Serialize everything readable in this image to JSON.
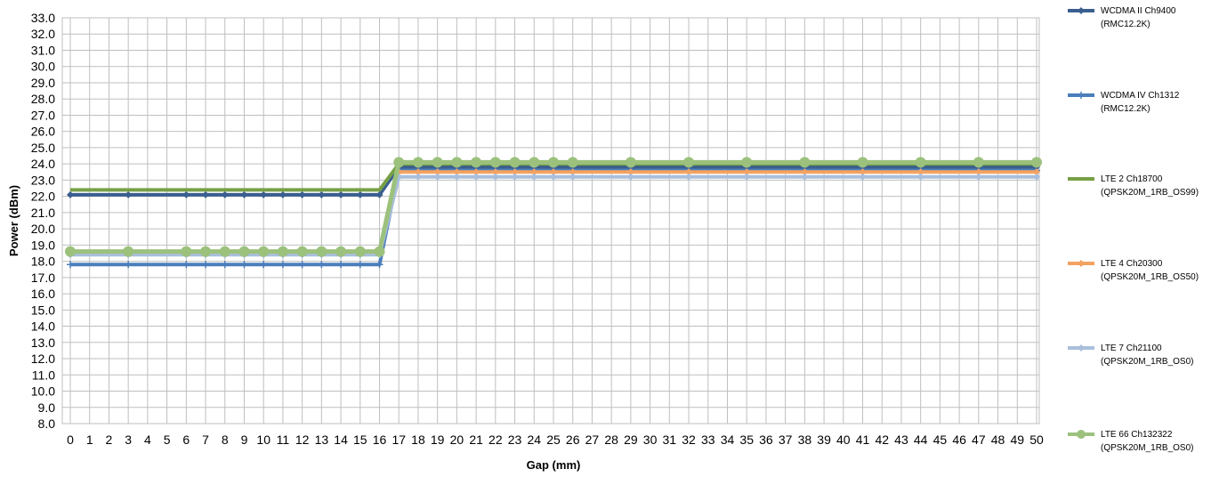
{
  "chart_data": {
    "type": "line",
    "title": "",
    "xlabel": "Gap (mm)",
    "ylabel": "Power (dBm)",
    "xlim": [
      0,
      50
    ],
    "ylim": [
      8.0,
      33.0
    ],
    "ytick_step": 1.0,
    "grid": true,
    "legend_position": "right",
    "series": [
      {
        "name": "WCDMA II Ch9400",
        "name_line2": "(RMC12.2K)",
        "color": "#3A5F8F",
        "marker": "diamond",
        "points": [
          [
            0,
            22.1
          ],
          [
            3,
            22.1
          ],
          [
            6,
            22.1
          ],
          [
            7,
            22.1
          ],
          [
            8,
            22.1
          ],
          [
            9,
            22.1
          ],
          [
            10,
            22.1
          ],
          [
            11,
            22.1
          ],
          [
            12,
            22.1
          ],
          [
            13,
            22.1
          ],
          [
            14,
            22.1
          ],
          [
            15,
            22.1
          ],
          [
            16,
            22.1
          ],
          [
            17,
            23.8
          ],
          [
            18,
            23.8
          ],
          [
            19,
            23.8
          ],
          [
            20,
            23.8
          ],
          [
            21,
            23.8
          ],
          [
            22,
            23.8
          ],
          [
            23,
            23.8
          ],
          [
            24,
            23.8
          ],
          [
            25,
            23.8
          ],
          [
            26,
            23.8
          ],
          [
            29,
            23.8
          ],
          [
            32,
            23.8
          ],
          [
            35,
            23.8
          ],
          [
            38,
            23.8
          ],
          [
            41,
            23.8
          ],
          [
            44,
            23.8
          ],
          [
            47,
            23.8
          ],
          [
            50,
            23.8
          ]
        ]
      },
      {
        "name": "WCDMA IV Ch1312",
        "name_line2": "(RMC12.2K)",
        "color": "#4A7EBB",
        "marker": "plus",
        "points": [
          [
            0,
            17.8
          ],
          [
            3,
            17.8
          ],
          [
            6,
            17.8
          ],
          [
            7,
            17.8
          ],
          [
            8,
            17.8
          ],
          [
            9,
            17.8
          ],
          [
            10,
            17.8
          ],
          [
            11,
            17.8
          ],
          [
            12,
            17.8
          ],
          [
            13,
            17.8
          ],
          [
            14,
            17.8
          ],
          [
            15,
            17.8
          ],
          [
            16,
            17.8
          ],
          [
            17,
            23.6
          ],
          [
            18,
            23.6
          ],
          [
            19,
            23.6
          ],
          [
            20,
            23.6
          ],
          [
            21,
            23.6
          ],
          [
            22,
            23.6
          ],
          [
            23,
            23.6
          ],
          [
            24,
            23.6
          ],
          [
            25,
            23.6
          ],
          [
            26,
            23.6
          ],
          [
            29,
            23.6
          ],
          [
            32,
            23.6
          ],
          [
            35,
            23.6
          ],
          [
            38,
            23.6
          ],
          [
            41,
            23.6
          ],
          [
            44,
            23.6
          ],
          [
            47,
            23.6
          ],
          [
            50,
            23.6
          ]
        ]
      },
      {
        "name": "LTE 2 Ch18700",
        "name_line2": "(QPSK20M_1RB_OS99)",
        "color": "#77A046",
        "marker": "none",
        "points": [
          [
            0,
            22.4
          ],
          [
            3,
            22.4
          ],
          [
            6,
            22.4
          ],
          [
            7,
            22.4
          ],
          [
            8,
            22.4
          ],
          [
            9,
            22.4
          ],
          [
            10,
            22.4
          ],
          [
            11,
            22.4
          ],
          [
            12,
            22.4
          ],
          [
            13,
            22.4
          ],
          [
            14,
            22.4
          ],
          [
            15,
            22.4
          ],
          [
            16,
            22.4
          ],
          [
            17,
            24.0
          ],
          [
            18,
            24.0
          ],
          [
            19,
            24.0
          ],
          [
            20,
            24.0
          ],
          [
            21,
            24.0
          ],
          [
            22,
            24.0
          ],
          [
            23,
            24.0
          ],
          [
            24,
            24.0
          ],
          [
            25,
            24.0
          ],
          [
            26,
            24.0
          ],
          [
            29,
            24.0
          ],
          [
            32,
            24.0
          ],
          [
            35,
            24.0
          ],
          [
            38,
            24.0
          ],
          [
            41,
            24.0
          ],
          [
            44,
            24.0
          ],
          [
            47,
            24.0
          ],
          [
            50,
            24.0
          ]
        ]
      },
      {
        "name": "LTE 4 Ch20300",
        "name_line2": "(QPSK20M_1RB_OS50)",
        "color": "#F4A261",
        "marker": "diamond",
        "points": [
          [
            0,
            18.5
          ],
          [
            3,
            18.5
          ],
          [
            6,
            18.5
          ],
          [
            7,
            18.5
          ],
          [
            8,
            18.5
          ],
          [
            9,
            18.5
          ],
          [
            10,
            18.5
          ],
          [
            11,
            18.5
          ],
          [
            12,
            18.5
          ],
          [
            13,
            18.5
          ],
          [
            14,
            18.5
          ],
          [
            15,
            18.5
          ],
          [
            16,
            18.5
          ],
          [
            17,
            23.5
          ],
          [
            18,
            23.5
          ],
          [
            19,
            23.5
          ],
          [
            20,
            23.5
          ],
          [
            21,
            23.5
          ],
          [
            22,
            23.5
          ],
          [
            23,
            23.5
          ],
          [
            24,
            23.5
          ],
          [
            25,
            23.5
          ],
          [
            26,
            23.5
          ],
          [
            29,
            23.5
          ],
          [
            32,
            23.5
          ],
          [
            35,
            23.5
          ],
          [
            38,
            23.5
          ],
          [
            41,
            23.5
          ],
          [
            44,
            23.5
          ],
          [
            47,
            23.5
          ],
          [
            50,
            23.5
          ]
        ]
      },
      {
        "name": "LTE 7 Ch21100",
        "name_line2": "(QPSK20M_1RB_OS0)",
        "color": "#A9BFDC",
        "marker": "diamond",
        "points": [
          [
            0,
            18.4
          ],
          [
            3,
            18.4
          ],
          [
            6,
            18.4
          ],
          [
            7,
            18.4
          ],
          [
            8,
            18.4
          ],
          [
            9,
            18.4
          ],
          [
            10,
            18.4
          ],
          [
            11,
            18.4
          ],
          [
            12,
            18.4
          ],
          [
            13,
            18.4
          ],
          [
            14,
            18.4
          ],
          [
            15,
            18.4
          ],
          [
            16,
            18.4
          ],
          [
            17,
            23.2
          ],
          [
            18,
            23.2
          ],
          [
            19,
            23.2
          ],
          [
            20,
            23.2
          ],
          [
            21,
            23.2
          ],
          [
            22,
            23.2
          ],
          [
            23,
            23.2
          ],
          [
            24,
            23.2
          ],
          [
            25,
            23.2
          ],
          [
            26,
            23.2
          ],
          [
            29,
            23.2
          ],
          [
            32,
            23.2
          ],
          [
            35,
            23.2
          ],
          [
            38,
            23.2
          ],
          [
            41,
            23.2
          ],
          [
            44,
            23.2
          ],
          [
            47,
            23.2
          ],
          [
            50,
            23.2
          ]
        ]
      },
      {
        "name": "LTE 66 Ch132322",
        "name_line2": "(QPSK20M_1RB_OS0)",
        "color": "#9CC17D",
        "marker": "circle",
        "points": [
          [
            0,
            18.6
          ],
          [
            3,
            18.6
          ],
          [
            6,
            18.6
          ],
          [
            7,
            18.6
          ],
          [
            8,
            18.6
          ],
          [
            9,
            18.6
          ],
          [
            10,
            18.6
          ],
          [
            11,
            18.6
          ],
          [
            12,
            18.6
          ],
          [
            13,
            18.6
          ],
          [
            14,
            18.6
          ],
          [
            15,
            18.6
          ],
          [
            16,
            18.6
          ],
          [
            17,
            24.1
          ],
          [
            18,
            24.1
          ],
          [
            19,
            24.1
          ],
          [
            20,
            24.1
          ],
          [
            21,
            24.1
          ],
          [
            22,
            24.1
          ],
          [
            23,
            24.1
          ],
          [
            24,
            24.1
          ],
          [
            25,
            24.1
          ],
          [
            26,
            24.1
          ],
          [
            29,
            24.1
          ],
          [
            32,
            24.1
          ],
          [
            35,
            24.1
          ],
          [
            38,
            24.1
          ],
          [
            41,
            24.1
          ],
          [
            44,
            24.1
          ],
          [
            47,
            24.1
          ],
          [
            50,
            24.1
          ]
        ]
      }
    ]
  }
}
